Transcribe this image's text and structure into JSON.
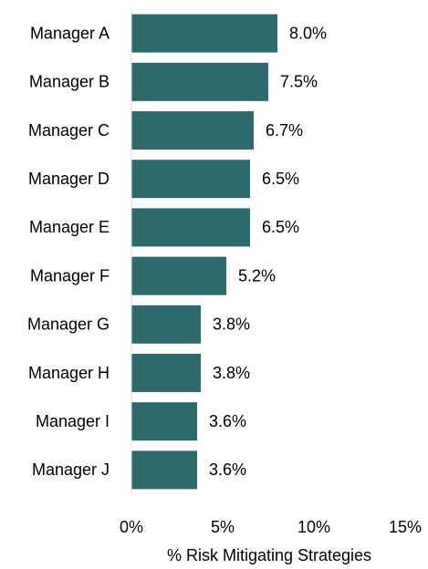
{
  "chart_data": {
    "type": "hbar",
    "x_label": "% Risk Mitigating Strategies",
    "categories": [
      "Manager A",
      "Manager B",
      "Manager C",
      "Manager D",
      "Manager E",
      "Manager F",
      "Manager G",
      "Manager H",
      "Manager I",
      "Manager J"
    ],
    "values": [
      8.0,
      7.5,
      6.7,
      6.5,
      6.5,
      5.2,
      3.8,
      3.8,
      3.6,
      3.6
    ],
    "value_labels": [
      "8.0%",
      "7.5%",
      "6.7%",
      "6.5%",
      "6.5%",
      "5.2%",
      "3.8%",
      "3.8%",
      "3.6%",
      "3.6%"
    ],
    "color": "#2e6a6c",
    "xlim": [
      0,
      15
    ],
    "xticks": [
      {
        "value": 0,
        "label": "0%"
      },
      {
        "value": 5,
        "label": "5%"
      },
      {
        "value": 10,
        "label": "10%"
      },
      {
        "value": 15,
        "label": "15%"
      }
    ],
    "grid": false
  }
}
